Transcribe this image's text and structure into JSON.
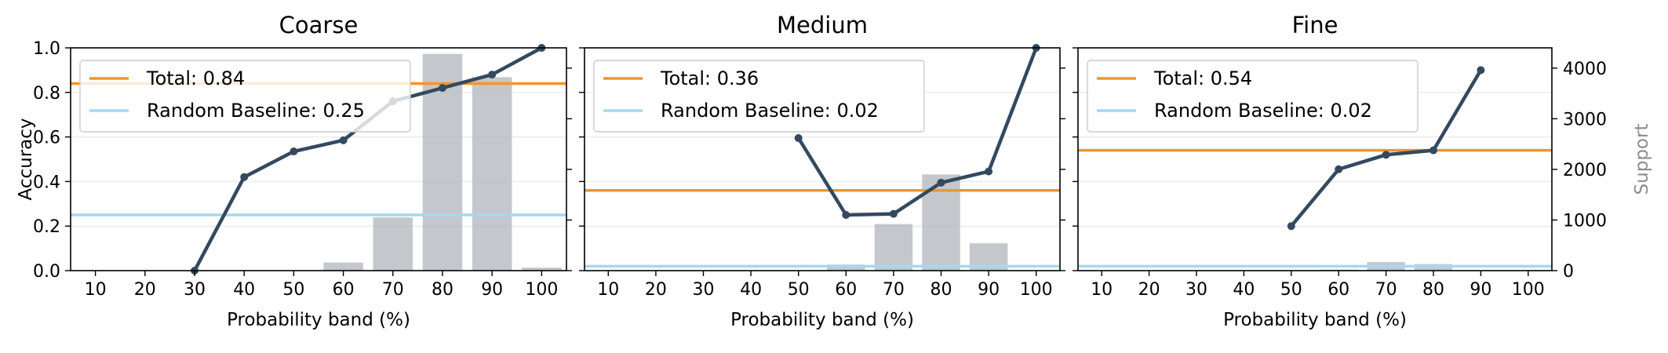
{
  "colors": {
    "total": "#f0962a",
    "baseline": "#a9d6ef",
    "accuracy_line": "#34495e",
    "support_bar": "#b3b9bf",
    "grid": "#ececec",
    "support_label": "#8c8c8c"
  },
  "chart_data": [
    {
      "type": "bar",
      "title": "Coarse",
      "xlabel": "Probability band (%)",
      "ylabel": "Accuracy",
      "x_ticks": [
        "10",
        "20",
        "30",
        "40",
        "50",
        "60",
        "70",
        "80",
        "90",
        "100"
      ],
      "ylim": [
        0,
        1.0
      ],
      "y_ticks": [
        "0.0",
        "0.2",
        "0.4",
        "0.6",
        "0.8",
        "1.0"
      ],
      "support_ylim": [
        0,
        4400
      ],
      "grid": "horizontal",
      "legend_position": "top-left",
      "accuracy": {
        "x": [
          30,
          40,
          50,
          60,
          70,
          80,
          90,
          100
        ],
        "y": [
          0.0,
          0.42,
          0.535,
          0.585,
          0.76,
          0.82,
          0.88,
          1.0
        ]
      },
      "support": {
        "x": [
          60,
          70,
          80,
          90,
          100
        ],
        "values": [
          160,
          1050,
          4280,
          3820,
          60
        ]
      },
      "total": {
        "label": "Total: 0.84",
        "value": 0.84
      },
      "baseline": {
        "label": "Random Baseline: 0.25",
        "value": 0.25
      }
    },
    {
      "type": "bar",
      "title": "Medium",
      "xlabel": "Probability band (%)",
      "x_ticks": [
        "10",
        "20",
        "30",
        "40",
        "50",
        "60",
        "70",
        "80",
        "90",
        "100"
      ],
      "ylim": [
        0,
        1.0
      ],
      "support_ylim": [
        0,
        4400
      ],
      "grid": "horizontal",
      "legend_position": "top-left",
      "accuracy": {
        "x": [
          50,
          60,
          70,
          80,
          90,
          100
        ],
        "y": [
          0.595,
          0.25,
          0.255,
          0.395,
          0.445,
          1.0
        ]
      },
      "support": {
        "x": [
          60,
          70,
          80,
          90
        ],
        "values": [
          120,
          920,
          1900,
          540
        ]
      },
      "total": {
        "label": "Total: 0.36",
        "value": 0.36
      },
      "baseline": {
        "label": "Random Baseline: 0.02",
        "value": 0.02
      }
    },
    {
      "type": "bar",
      "title": "Fine",
      "xlabel": "Probability band (%)",
      "x_ticks": [
        "10",
        "20",
        "30",
        "40",
        "50",
        "60",
        "70",
        "80",
        "90",
        "100"
      ],
      "ylim": [
        0,
        1.0
      ],
      "support_ylim": [
        0,
        4400
      ],
      "support_label": "Support",
      "support_ticks": [
        "0",
        "1000",
        "2000",
        "3000",
        "4000"
      ],
      "grid": "horizontal",
      "legend_position": "top-left",
      "accuracy": {
        "x": [
          50,
          60,
          70,
          80,
          90
        ],
        "y": [
          0.2,
          0.455,
          0.52,
          0.54,
          0.9
        ]
      },
      "support": {
        "x": [
          60,
          70,
          80
        ],
        "values": [
          20,
          170,
          130
        ]
      },
      "total": {
        "label": "Total: 0.54",
        "value": 0.54
      },
      "baseline": {
        "label": "Random Baseline: 0.02",
        "value": 0.02
      }
    }
  ]
}
